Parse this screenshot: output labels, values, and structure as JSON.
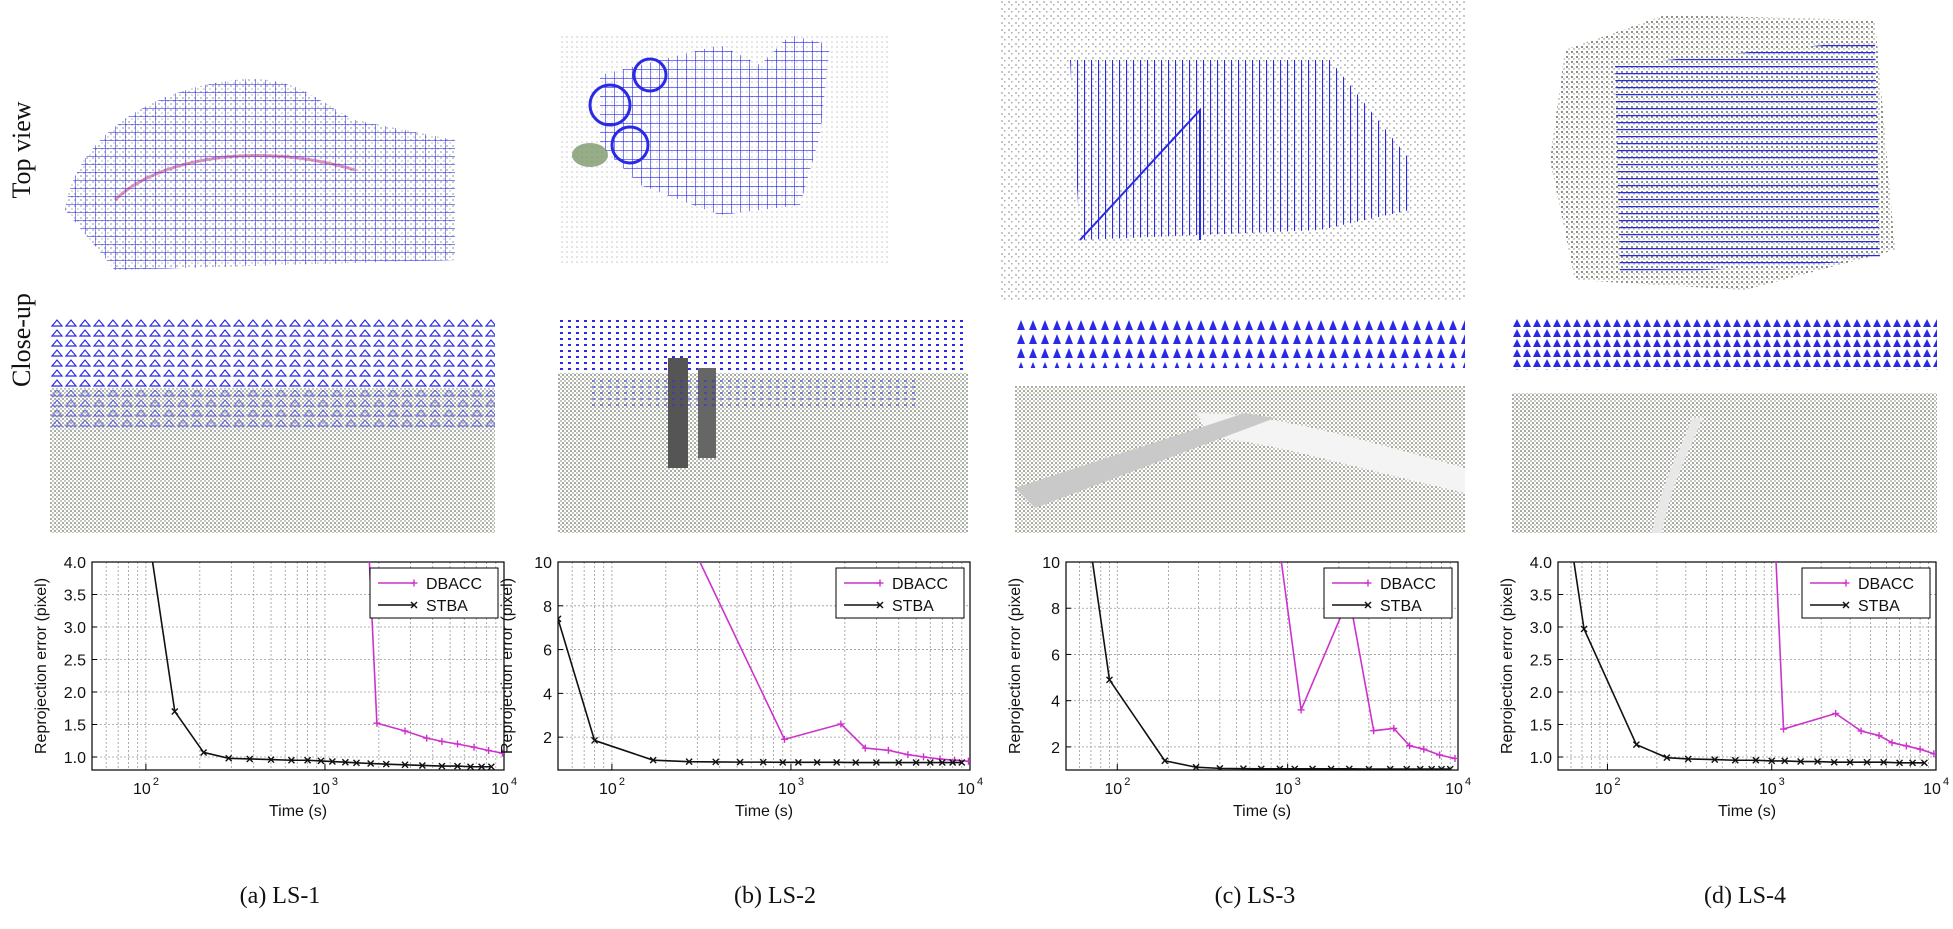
{
  "row_labels": {
    "top_view": "Top view",
    "close_up": "Close-up"
  },
  "colors": {
    "dbacc": "#cc33cc",
    "stba": "#111111",
    "cameras": "#2a2ae6",
    "grid": "#9a9a9a"
  },
  "panels": [
    {
      "caption": "(a) LS-1"
    },
    {
      "caption": "(b) LS-2"
    },
    {
      "caption": "(c) LS-3"
    },
    {
      "caption": "(d) LS-4"
    }
  ],
  "chart_data": [
    {
      "type": "line",
      "xscale": "log",
      "xlim": [
        50,
        10000
      ],
      "ylim": [
        0.8,
        4.0
      ],
      "yticks": [
        1.0,
        1.5,
        2.0,
        2.5,
        3.0,
        3.5,
        4.0
      ],
      "ytick_labels": [
        "1.0",
        "1.5",
        "2.0",
        "2.5",
        "3.0",
        "3.5",
        "4.0"
      ],
      "xticks": [
        100,
        1000,
        10000
      ],
      "xlabel": "Time (s)",
      "ylabel": "Reprojection error (pixel)",
      "grid": true,
      "legend": "top-right",
      "series": [
        {
          "name": "DBACC",
          "marker": "plus",
          "x": [
            1750,
            1950,
            2800,
            3700,
            4500,
            5500,
            6800,
            8200,
            9800
          ],
          "y": [
            4.3,
            1.52,
            1.4,
            1.29,
            1.24,
            1.2,
            1.15,
            1.1,
            1.06
          ]
        },
        {
          "name": "STBA",
          "marker": "x",
          "x": [
            105,
            145,
            210,
            290,
            380,
            500,
            650,
            800,
            950,
            1100,
            1300,
            1500,
            1800,
            2200,
            2800,
            3500,
            4500,
            5500,
            6500,
            7500,
            8500
          ],
          "y": [
            4.3,
            1.7,
            1.07,
            0.98,
            0.97,
            0.96,
            0.95,
            0.95,
            0.94,
            0.93,
            0.92,
            0.91,
            0.9,
            0.89,
            0.88,
            0.87,
            0.86,
            0.86,
            0.85,
            0.85,
            0.85
          ]
        }
      ]
    },
    {
      "type": "line",
      "xscale": "log",
      "xlim": [
        50,
        10000
      ],
      "ylim": [
        0.5,
        10
      ],
      "yticks": [
        2,
        4,
        6,
        8,
        10
      ],
      "ytick_labels": [
        "2",
        "4",
        "6",
        "8",
        "10"
      ],
      "xticks": [
        100,
        1000,
        10000
      ],
      "xlabel": "Time (s)",
      "ylabel": "Reprojection error (pixel)",
      "grid": true,
      "legend": "top-right",
      "series": [
        {
          "name": "DBACC",
          "marker": "plus",
          "x": [
            290,
            920,
            1900,
            2600,
            3500,
            4500,
            5500,
            6800,
            8200,
            9800
          ],
          "y": [
            10.5,
            1.9,
            2.6,
            1.5,
            1.4,
            1.2,
            1.1,
            1.0,
            0.95,
            0.9
          ]
        },
        {
          "name": "STBA",
          "marker": "x",
          "x": [
            50,
            80,
            170,
            270,
            380,
            520,
            700,
            900,
            1100,
            1400,
            1800,
            2300,
            3000,
            4000,
            5000,
            6000,
            7000,
            8000,
            9000
          ],
          "y": [
            7.4,
            1.85,
            0.95,
            0.88,
            0.87,
            0.86,
            0.86,
            0.85,
            0.85,
            0.85,
            0.85,
            0.84,
            0.84,
            0.84,
            0.84,
            0.84,
            0.84,
            0.84,
            0.84
          ]
        }
      ]
    },
    {
      "type": "line",
      "xscale": "log",
      "xlim": [
        50,
        10000
      ],
      "ylim": [
        1,
        10
      ],
      "yticks": [
        2,
        4,
        6,
        8,
        10
      ],
      "ytick_labels": [
        "2",
        "4",
        "6",
        "8",
        "10"
      ],
      "xticks": [
        100,
        1000,
        10000
      ],
      "xlabel": "Time (s)",
      "ylabel": "Reprojection error (pixel)",
      "grid": true,
      "legend": "top-right",
      "series": [
        {
          "name": "DBACC",
          "marker": "plus",
          "x": [
            900,
            1200,
            2300,
            3200,
            4200,
            5200,
            6300,
            7800,
            9600
          ],
          "y": [
            10.5,
            3.6,
            8.5,
            2.7,
            2.8,
            2.05,
            1.9,
            1.65,
            1.5
          ]
        },
        {
          "name": "STBA",
          "marker": "x",
          "x": [
            70,
            90,
            190,
            290,
            400,
            550,
            700,
            900,
            1100,
            1400,
            1800,
            2300,
            3000,
            4000,
            5000,
            6000,
            7000,
            8000,
            9000
          ],
          "y": [
            10.5,
            4.9,
            1.4,
            1.12,
            1.07,
            1.06,
            1.05,
            1.05,
            1.05,
            1.05,
            1.05,
            1.05,
            1.04,
            1.04,
            1.04,
            1.04,
            1.04,
            1.04,
            1.04
          ]
        }
      ]
    },
    {
      "type": "line",
      "xscale": "log",
      "xlim": [
        50,
        10000
      ],
      "ylim": [
        0.8,
        4.0
      ],
      "yticks": [
        1.0,
        1.5,
        2.0,
        2.5,
        3.0,
        3.5,
        4.0
      ],
      "ytick_labels": [
        "1.0",
        "1.5",
        "2.0",
        "2.5",
        "3.0",
        "3.5",
        "4.0"
      ],
      "xticks": [
        100,
        1000,
        10000
      ],
      "xlabel": "Time (s)",
      "ylabel": "Reprojection error (pixel)",
      "grid": true,
      "legend": "top-right",
      "series": [
        {
          "name": "DBACC",
          "marker": "plus",
          "x": [
            1050,
            1180,
            2450,
            3500,
            4500,
            5400,
            6600,
            8000,
            9700
          ],
          "y": [
            4.3,
            1.43,
            1.67,
            1.4,
            1.33,
            1.22,
            1.17,
            1.12,
            1.05
          ]
        },
        {
          "name": "STBA",
          "marker": "x",
          "x": [
            60,
            72,
            150,
            230,
            310,
            450,
            600,
            800,
            1000,
            1200,
            1500,
            1900,
            2400,
            3000,
            3800,
            4800,
            6000,
            7200,
            8500
          ],
          "y": [
            4.3,
            2.97,
            1.19,
            0.99,
            0.97,
            0.96,
            0.95,
            0.95,
            0.94,
            0.94,
            0.93,
            0.93,
            0.92,
            0.92,
            0.92,
            0.92,
            0.91,
            0.91,
            0.91
          ]
        }
      ]
    }
  ]
}
